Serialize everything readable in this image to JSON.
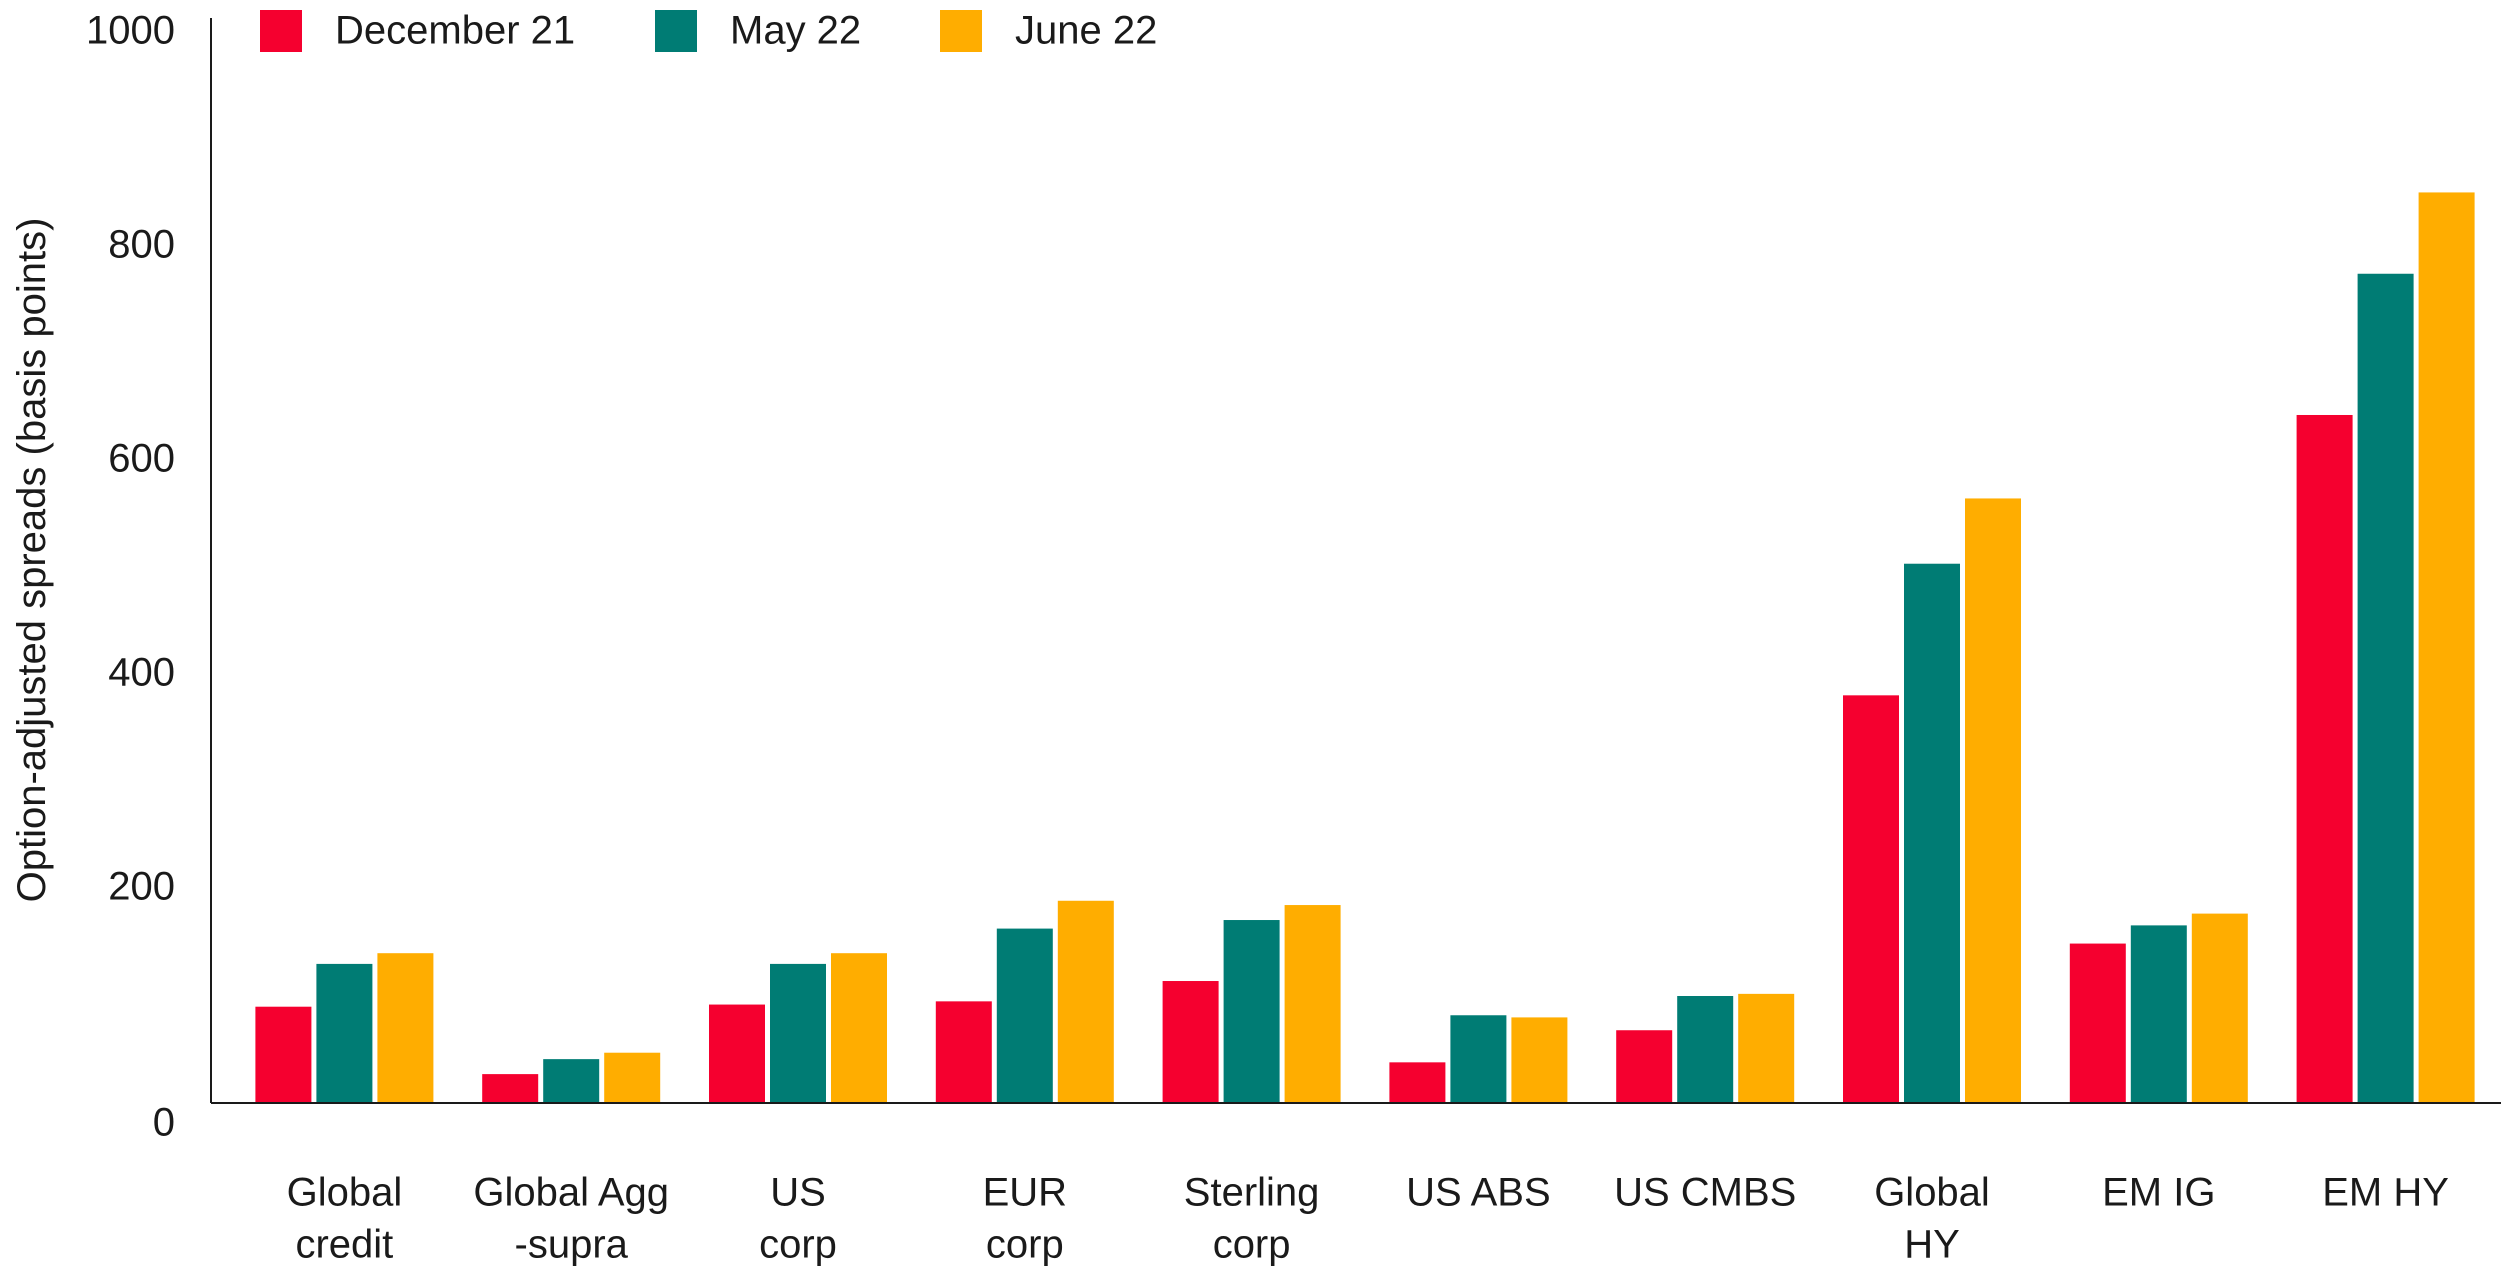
{
  "chart_data": {
    "type": "bar",
    "title": "",
    "xlabel": "",
    "ylabel": "Option-adjusted spreads (basis points)",
    "ylim": [
      0,
      1000
    ],
    "yticks": [
      0,
      200,
      400,
      600,
      800,
      1000
    ],
    "grid": false,
    "legend_position": "top-left",
    "categories": [
      [
        "Global",
        "credit"
      ],
      [
        "Global Agg",
        "-supra"
      ],
      [
        "US",
        "corp"
      ],
      [
        "EUR",
        "corp"
      ],
      [
        "Sterling",
        "corp"
      ],
      [
        "US ABS"
      ],
      [
        "US CMBS"
      ],
      [
        "Global",
        "HY"
      ],
      [
        "EM IG"
      ],
      [
        "EM HY"
      ]
    ],
    "series": [
      {
        "name": "December 21",
        "color": "#F5002F",
        "values": [
          90,
          27,
          92,
          95,
          114,
          38,
          68,
          381,
          149,
          643
        ]
      },
      {
        "name": "May 22",
        "color": "#007C74",
        "values": [
          130,
          41,
          130,
          163,
          171,
          82,
          100,
          504,
          166,
          775
        ]
      },
      {
        "name": "June 22",
        "color": "#FFAD00",
        "values": [
          140,
          47,
          140,
          189,
          185,
          80,
          102,
          565,
          177,
          851
        ]
      }
    ]
  }
}
